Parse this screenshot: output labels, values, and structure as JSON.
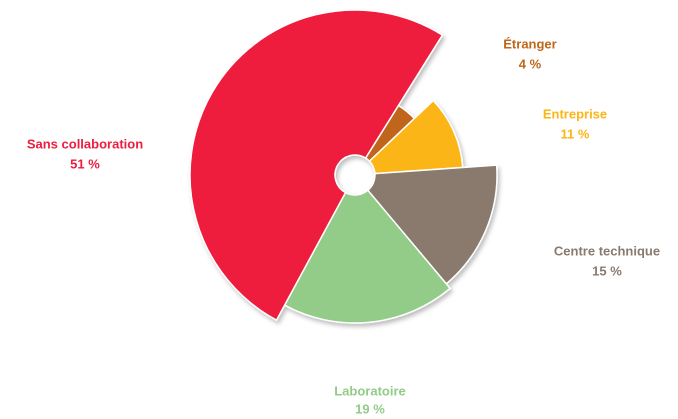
{
  "chart_data": {
    "type": "pie",
    "categories": [
      "Étranger",
      "Entreprise",
      "Centre technique",
      "Laboratoire",
      "Sans collaboration"
    ],
    "values": [
      4,
      11,
      15,
      19,
      51
    ],
    "value_labels": [
      "4 %",
      "11 %",
      "15 %",
      "19 %",
      "51 %"
    ],
    "colors": [
      "#c0661a",
      "#fbb515",
      "#8a7a6e",
      "#92cc88",
      "#ee1c3e"
    ]
  }
}
